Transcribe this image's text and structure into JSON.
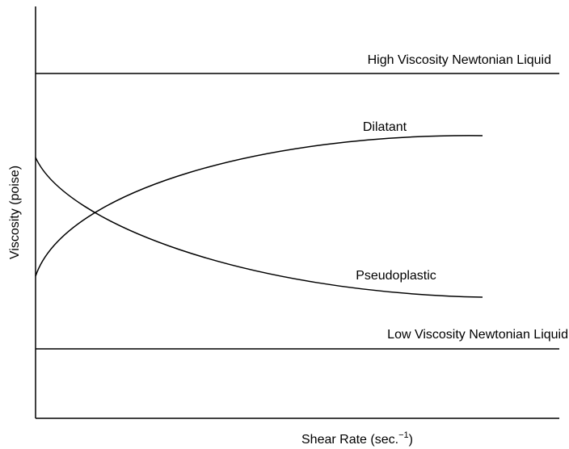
{
  "labels": {
    "high": "High Viscosity Newtonian Liquid",
    "dilatant": "Dilatant",
    "pseudoplastic": "Pseudoplastic",
    "low": "Low Viscosity Newtonian Liquid"
  },
  "axes": {
    "y_label": "Viscosity (poise)",
    "x_label": {
      "main": "Shear Rate (sec.",
      "superscript": "−1",
      "close": ")"
    }
  }
}
